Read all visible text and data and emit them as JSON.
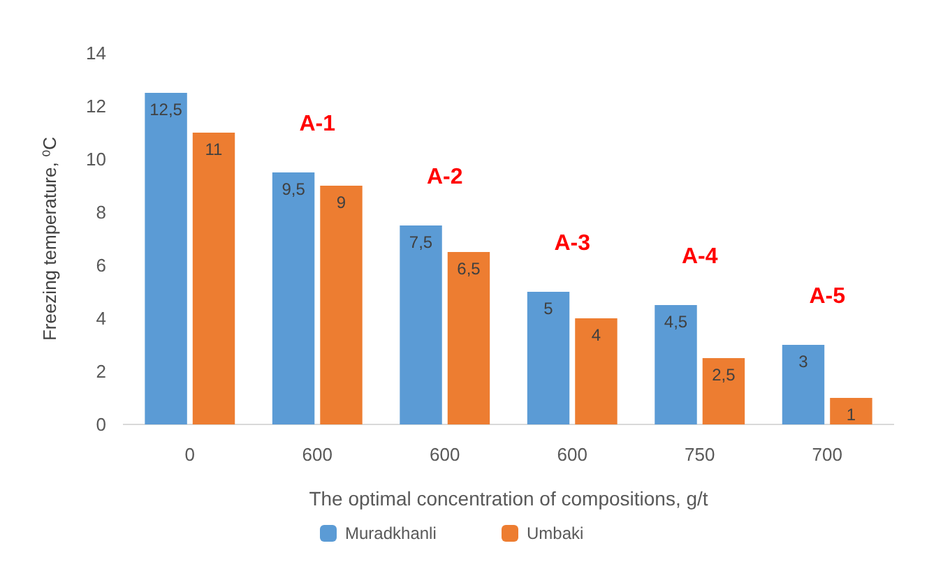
{
  "chart_data": {
    "type": "bar",
    "xlabel": "The optimal concentration of compositions, g/t",
    "ylabel": "Freezing temperature, ⁰C",
    "categories": [
      "0",
      "600",
      "600",
      "600",
      "750",
      "700"
    ],
    "ylim": [
      0,
      14
    ],
    "yticks": [
      0,
      2,
      4,
      6,
      8,
      10,
      12,
      14
    ],
    "grid": false,
    "legend": "bottom",
    "annotations": [
      "A-1",
      "A-2",
      "A-3",
      "A-4",
      "A-5"
    ],
    "series": [
      {
        "name": "Muradkhanli",
        "color": "#5b9bd5",
        "values": [
          12.5,
          9.5,
          7.5,
          5,
          4.5,
          3
        ],
        "value_labels": [
          "12,5",
          "9,5",
          "7,5",
          "5",
          "4,5",
          "3"
        ]
      },
      {
        "name": "Umbaki",
        "color": "#ed7d31",
        "values": [
          11,
          9,
          6.5,
          4,
          2.5,
          1
        ],
        "value_labels": [
          "11",
          "9",
          "6,5",
          "4",
          "2,5",
          "1"
        ]
      }
    ]
  }
}
